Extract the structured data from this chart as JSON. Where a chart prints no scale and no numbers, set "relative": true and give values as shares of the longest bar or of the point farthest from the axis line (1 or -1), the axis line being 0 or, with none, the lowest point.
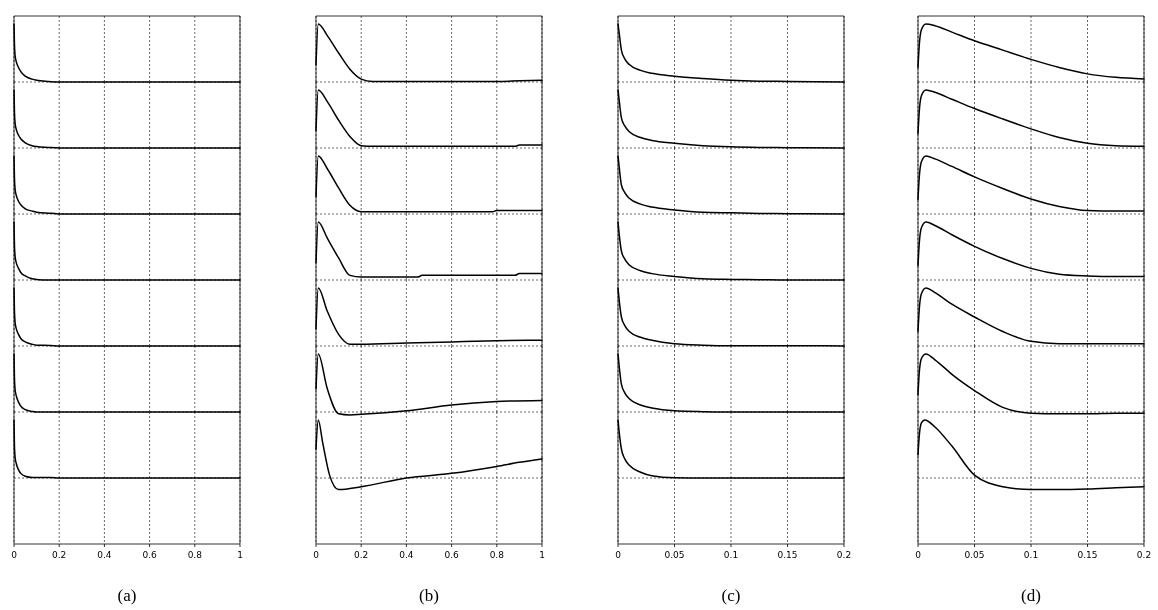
{
  "chart_data": [
    {
      "type": "line",
      "relative": true,
      "color": "#000000",
      "grid": "x",
      "tick_labels": false,
      "xlim": [
        0,
        1
      ],
      "xticks": [
        0,
        0.2,
        0.4,
        0.6,
        0.8,
        1
      ],
      "x": [
        0,
        0.002,
        0.005,
        0.01,
        0.02,
        0.03,
        0.05,
        0.08,
        0.1,
        0.15,
        0.2,
        0.4,
        0.6,
        0.8,
        1
      ],
      "values": [
        1,
        0.65,
        0.45,
        0.35,
        0.25,
        0.18,
        0.1,
        0.05,
        0.03,
        0.01,
        0,
        0,
        0,
        0,
        0
      ]
    },
    {
      "type": "line",
      "relative": true,
      "color": "#000000",
      "grid": "x",
      "tick_labels": false,
      "xlim": [
        0,
        1
      ],
      "xticks": [
        0,
        0.2,
        0.4,
        0.6,
        0.8,
        1
      ],
      "x": [
        0,
        0.002,
        0.005,
        0.01,
        0.02,
        0.03,
        0.05,
        0.08,
        0.1,
        0.15,
        0.2,
        0.4,
        0.6,
        0.8,
        1
      ],
      "values": [
        1,
        0.62,
        0.42,
        0.32,
        0.22,
        0.16,
        0.09,
        0.04,
        0.025,
        0.01,
        0,
        0,
        0,
        0,
        0
      ]
    },
    {
      "type": "line",
      "relative": true,
      "color": "#000000",
      "grid": "x",
      "tick_labels": false,
      "xlim": [
        0,
        1
      ],
      "xticks": [
        0,
        0.2,
        0.4,
        0.6,
        0.8,
        1
      ],
      "x": [
        0,
        0.002,
        0.005,
        0.01,
        0.02,
        0.03,
        0.05,
        0.08,
        0.1,
        0.15,
        0.18,
        0.2,
        0.4,
        0.6,
        0.8,
        1
      ],
      "values": [
        1,
        0.62,
        0.42,
        0.32,
        0.22,
        0.16,
        0.09,
        0.05,
        0.03,
        0.015,
        0.01,
        0,
        0,
        0,
        0,
        0
      ]
    },
    {
      "type": "line",
      "relative": true,
      "color": "#000000",
      "grid": "x",
      "tick_labels": false,
      "xlim": [
        0,
        1
      ],
      "xticks": [
        0,
        0.2,
        0.4,
        0.6,
        0.8,
        1
      ],
      "x": [
        0,
        0.002,
        0.005,
        0.01,
        0.02,
        0.03,
        0.05,
        0.08,
        0.1,
        0.15,
        0.2,
        0.4,
        0.6,
        0.8,
        1
      ],
      "values": [
        1,
        0.6,
        0.4,
        0.3,
        0.2,
        0.13,
        0.07,
        0.02,
        0.01,
        0,
        0,
        0,
        0,
        0,
        0
      ]
    },
    {
      "type": "line",
      "relative": true,
      "color": "#000000",
      "grid": "x",
      "tick_labels": false,
      "xlim": [
        0,
        1
      ],
      "xticks": [
        0,
        0.2,
        0.4,
        0.6,
        0.8,
        1
      ],
      "x": [
        0,
        0.002,
        0.005,
        0.01,
        0.02,
        0.03,
        0.05,
        0.08,
        0.1,
        0.16,
        0.2,
        0.4,
        0.6,
        0.8,
        1
      ],
      "values": [
        1,
        0.6,
        0.4,
        0.3,
        0.2,
        0.13,
        0.07,
        0.03,
        0.015,
        0.01,
        0,
        0,
        0,
        0,
        0
      ]
    },
    {
      "type": "line",
      "relative": true,
      "color": "#000000",
      "grid": "x",
      "tick_labels": false,
      "xlim": [
        0,
        1
      ],
      "xticks": [
        0,
        0.2,
        0.4,
        0.6,
        0.8,
        1
      ],
      "x": [
        0,
        0.002,
        0.005,
        0.01,
        0.02,
        0.03,
        0.05,
        0.08,
        0.1,
        0.15,
        0.2,
        0.4,
        0.6,
        0.8,
        1
      ],
      "values": [
        1,
        0.6,
        0.38,
        0.28,
        0.17,
        0.1,
        0.04,
        0.01,
        0,
        0,
        0,
        0,
        0,
        0,
        0
      ]
    },
    {
      "type": "line",
      "relative": true,
      "color": "#000000",
      "grid": "x",
      "tick_labels": "x",
      "xlabel": "(a)",
      "xlim": [
        0,
        1
      ],
      "xticks": [
        0,
        0.2,
        0.4,
        0.6,
        0.8,
        1
      ],
      "x": [
        0,
        0.002,
        0.005,
        0.01,
        0.02,
        0.03,
        0.05,
        0.08,
        0.1,
        0.16,
        0.2,
        0.4,
        0.6,
        0.8,
        1
      ],
      "values": [
        1,
        0.55,
        0.35,
        0.25,
        0.14,
        0.08,
        0.03,
        0.01,
        0.01,
        0.01,
        0,
        0,
        0,
        0,
        0
      ]
    },
    {
      "type": "line",
      "relative": true,
      "color": "#000000",
      "grid": "x",
      "tick_labels": false,
      "xlim": [
        0,
        1
      ],
      "xticks": [
        0,
        0.2,
        0.4,
        0.6,
        0.8,
        1
      ],
      "x": [
        0,
        0.01,
        0.05,
        0.1,
        0.15,
        0.2,
        0.25,
        0.4,
        0.6,
        0.8,
        0.9,
        1
      ],
      "values": [
        0.3,
        1,
        0.8,
        0.5,
        0.22,
        0.05,
        0.01,
        0.01,
        0.01,
        0.01,
        0.02,
        0.03
      ]
    },
    {
      "type": "line",
      "relative": true,
      "color": "#000000",
      "grid": "x",
      "tick_labels": false,
      "xlim": [
        0,
        1
      ],
      "xticks": [
        0,
        0.2,
        0.4,
        0.6,
        0.8,
        1
      ],
      "x": [
        0,
        0.01,
        0.05,
        0.1,
        0.15,
        0.2,
        0.25,
        0.4,
        0.6,
        0.8,
        0.88,
        0.9,
        1
      ],
      "values": [
        0.3,
        1,
        0.8,
        0.48,
        0.2,
        0.04,
        0.03,
        0.03,
        0.03,
        0.03,
        0.03,
        0.05,
        0.05
      ]
    },
    {
      "type": "line",
      "relative": true,
      "color": "#000000",
      "grid": "x",
      "tick_labels": false,
      "xlim": [
        0,
        1
      ],
      "xticks": [
        0,
        0.2,
        0.4,
        0.6,
        0.8,
        1
      ],
      "x": [
        0,
        0.01,
        0.05,
        0.1,
        0.15,
        0.2,
        0.4,
        0.6,
        0.78,
        0.8,
        1
      ],
      "values": [
        0.3,
        1,
        0.78,
        0.45,
        0.15,
        0.04,
        0.04,
        0.04,
        0.04,
        0.06,
        0.06
      ]
    },
    {
      "type": "line",
      "relative": true,
      "color": "#000000",
      "grid": "x",
      "tick_labels": false,
      "xlim": [
        0,
        1
      ],
      "xticks": [
        0,
        0.2,
        0.4,
        0.6,
        0.8,
        1
      ],
      "x": [
        0,
        0.01,
        0.05,
        0.1,
        0.15,
        0.2,
        0.45,
        0.47,
        0.6,
        0.8,
        0.88,
        0.9,
        1
      ],
      "values": [
        0.3,
        1,
        0.72,
        0.38,
        0.08,
        0.05,
        0.05,
        0.08,
        0.08,
        0.08,
        0.08,
        0.11,
        0.11
      ]
    },
    {
      "type": "line",
      "relative": true,
      "color": "#000000",
      "grid": "x",
      "tick_labels": false,
      "xlim": [
        0,
        1
      ],
      "xticks": [
        0,
        0.2,
        0.4,
        0.6,
        0.8,
        1
      ],
      "x": [
        0,
        0.01,
        0.05,
        0.1,
        0.15,
        0.2,
        0.4,
        0.6,
        0.8,
        1
      ],
      "values": [
        0.3,
        1,
        0.6,
        0.2,
        0.03,
        0.03,
        0.05,
        0.07,
        0.09,
        0.1
      ]
    },
    {
      "type": "line",
      "relative": true,
      "color": "#000000",
      "grid": "x",
      "tick_labels": false,
      "xlim": [
        0,
        1
      ],
      "xticks": [
        0,
        0.2,
        0.4,
        0.6,
        0.8,
        1
      ],
      "x": [
        0,
        0.01,
        0.05,
        0.1,
        0.15,
        0.2,
        0.4,
        0.6,
        0.8,
        1
      ],
      "values": [
        0.4,
        1,
        0.4,
        -0.03,
        -0.05,
        -0.04,
        0.02,
        0.12,
        0.18,
        0.2
      ]
    },
    {
      "type": "line",
      "relative": true,
      "color": "#000000",
      "grid": "x",
      "tick_labels": "x",
      "xlabel": "(b)",
      "xlim": [
        0,
        1
      ],
      "xticks": [
        0,
        0.2,
        0.4,
        0.6,
        0.8,
        1
      ],
      "x": [
        0,
        0.01,
        0.03,
        0.06,
        0.1,
        0.2,
        0.4,
        0.6,
        0.8,
        0.9,
        1
      ],
      "values": [
        0.5,
        1,
        0.6,
        0.05,
        -0.2,
        -0.15,
        0,
        0.08,
        0.2,
        0.27,
        0.33
      ]
    },
    {
      "type": "line",
      "relative": true,
      "color": "#000000",
      "grid": "x",
      "tick_labels": false,
      "xlim": [
        0,
        0.2
      ],
      "xticks": [
        0,
        0.05,
        0.1,
        0.15,
        0.2
      ],
      "x": [
        0,
        0.001,
        0.003,
        0.006,
        0.01,
        0.02,
        0.03,
        0.05,
        0.075,
        0.1,
        0.125,
        0.15,
        0.2
      ],
      "values": [
        1,
        0.85,
        0.55,
        0.4,
        0.3,
        0.2,
        0.15,
        0.1,
        0.06,
        0.03,
        0.015,
        0.01,
        0
      ]
    },
    {
      "type": "line",
      "relative": true,
      "color": "#000000",
      "grid": "x",
      "tick_labels": false,
      "xlim": [
        0,
        0.2
      ],
      "xticks": [
        0,
        0.05,
        0.1,
        0.15,
        0.2
      ],
      "x": [
        0,
        0.001,
        0.003,
        0.006,
        0.01,
        0.02,
        0.03,
        0.05,
        0.075,
        0.1,
        0.125,
        0.15,
        0.2
      ],
      "values": [
        1,
        0.83,
        0.52,
        0.38,
        0.28,
        0.18,
        0.13,
        0.08,
        0.04,
        0.02,
        0.01,
        0.005,
        0
      ]
    },
    {
      "type": "line",
      "relative": true,
      "color": "#000000",
      "grid": "x",
      "tick_labels": false,
      "xlim": [
        0,
        0.2
      ],
      "xticks": [
        0,
        0.05,
        0.1,
        0.15,
        0.2
      ],
      "x": [
        0,
        0.001,
        0.003,
        0.006,
        0.01,
        0.02,
        0.03,
        0.05,
        0.075,
        0.1,
        0.125,
        0.15,
        0.2
      ],
      "values": [
        1,
        0.82,
        0.5,
        0.37,
        0.27,
        0.17,
        0.12,
        0.07,
        0.03,
        0.02,
        0.01,
        0.005,
        0
      ]
    },
    {
      "type": "line",
      "relative": true,
      "color": "#000000",
      "grid": "x",
      "tick_labels": false,
      "xlim": [
        0,
        0.2
      ],
      "xticks": [
        0,
        0.05,
        0.1,
        0.15,
        0.2
      ],
      "x": [
        0,
        0.001,
        0.003,
        0.006,
        0.01,
        0.02,
        0.03,
        0.05,
        0.075,
        0.1,
        0.125,
        0.15,
        0.2
      ],
      "values": [
        1,
        0.8,
        0.5,
        0.36,
        0.26,
        0.16,
        0.11,
        0.06,
        0.02,
        0.01,
        0.005,
        0,
        0
      ]
    },
    {
      "type": "line",
      "relative": true,
      "color": "#000000",
      "grid": "x",
      "tick_labels": false,
      "xlim": [
        0,
        0.2
      ],
      "xticks": [
        0,
        0.05,
        0.1,
        0.15,
        0.2
      ],
      "x": [
        0,
        0.001,
        0.003,
        0.006,
        0.01,
        0.02,
        0.03,
        0.05,
        0.075,
        0.1,
        0.125,
        0.15,
        0.2
      ],
      "values": [
        1,
        0.8,
        0.5,
        0.35,
        0.25,
        0.15,
        0.1,
        0.04,
        0.015,
        0.005,
        0.005,
        0.005,
        0
      ]
    },
    {
      "type": "line",
      "relative": true,
      "color": "#000000",
      "grid": "x",
      "tick_labels": false,
      "xlim": [
        0,
        0.2
      ],
      "xticks": [
        0,
        0.05,
        0.1,
        0.15,
        0.2
      ],
      "x": [
        0,
        0.001,
        0.003,
        0.006,
        0.01,
        0.02,
        0.03,
        0.05,
        0.075,
        0.1,
        0.125,
        0.15,
        0.2
      ],
      "values": [
        1,
        0.8,
        0.48,
        0.33,
        0.23,
        0.12,
        0.07,
        0.02,
        0.005,
        0,
        0,
        0,
        0
      ]
    },
    {
      "type": "line",
      "relative": true,
      "color": "#000000",
      "grid": "x",
      "tick_labels": "x",
      "xlabel": "(c)",
      "xlim": [
        0,
        0.2
      ],
      "xticks": [
        0,
        0.05,
        0.1,
        0.15,
        0.2
      ],
      "x": [
        0,
        0.001,
        0.003,
        0.006,
        0.01,
        0.02,
        0.03,
        0.05,
        0.075,
        0.1,
        0.125,
        0.15,
        0.2
      ],
      "values": [
        1,
        0.8,
        0.5,
        0.33,
        0.22,
        0.1,
        0.04,
        0.005,
        0,
        0,
        0,
        0,
        0
      ]
    },
    {
      "type": "line",
      "relative": true,
      "color": "#000000",
      "grid": "x",
      "tick_labels": false,
      "xlim": [
        0,
        0.2
      ],
      "xticks": [
        0,
        0.05,
        0.1,
        0.15,
        0.2
      ],
      "x": [
        0,
        0.001,
        0.003,
        0.007,
        0.015,
        0.03,
        0.05,
        0.075,
        0.1,
        0.125,
        0.15,
        0.175,
        0.2
      ],
      "values": [
        0.25,
        0.6,
        0.9,
        1,
        0.97,
        0.86,
        0.71,
        0.55,
        0.39,
        0.25,
        0.14,
        0.08,
        0.05
      ]
    },
    {
      "type": "line",
      "relative": true,
      "color": "#000000",
      "grid": "x",
      "tick_labels": false,
      "xlim": [
        0,
        0.2
      ],
      "xticks": [
        0,
        0.05,
        0.1,
        0.15,
        0.2
      ],
      "x": [
        0,
        0.001,
        0.003,
        0.007,
        0.015,
        0.03,
        0.05,
        0.075,
        0.1,
        0.125,
        0.15,
        0.175,
        0.2
      ],
      "values": [
        0.25,
        0.6,
        0.9,
        1,
        0.96,
        0.84,
        0.68,
        0.5,
        0.33,
        0.18,
        0.08,
        0.04,
        0.03
      ]
    },
    {
      "type": "line",
      "relative": true,
      "color": "#000000",
      "grid": "x",
      "tick_labels": false,
      "xlim": [
        0,
        0.2
      ],
      "xticks": [
        0,
        0.05,
        0.1,
        0.15,
        0.2
      ],
      "x": [
        0,
        0.001,
        0.003,
        0.007,
        0.015,
        0.03,
        0.05,
        0.075,
        0.1,
        0.125,
        0.15,
        0.175,
        0.2
      ],
      "values": [
        0.25,
        0.6,
        0.9,
        1,
        0.95,
        0.82,
        0.64,
        0.44,
        0.26,
        0.13,
        0.06,
        0.05,
        0.05
      ]
    },
    {
      "type": "line",
      "relative": true,
      "color": "#000000",
      "grid": "x",
      "tick_labels": false,
      "xlim": [
        0,
        0.2
      ],
      "xticks": [
        0,
        0.05,
        0.1,
        0.15,
        0.2
      ],
      "x": [
        0,
        0.001,
        0.003,
        0.007,
        0.015,
        0.03,
        0.05,
        0.075,
        0.1,
        0.125,
        0.15,
        0.175,
        0.2
      ],
      "values": [
        0.25,
        0.6,
        0.9,
        1,
        0.94,
        0.78,
        0.58,
        0.37,
        0.2,
        0.1,
        0.07,
        0.06,
        0.06
      ]
    },
    {
      "type": "line",
      "relative": true,
      "color": "#000000",
      "grid": "x",
      "tick_labels": false,
      "xlim": [
        0,
        0.2
      ],
      "xticks": [
        0,
        0.05,
        0.1,
        0.15,
        0.2
      ],
      "x": [
        0,
        0.001,
        0.003,
        0.007,
        0.015,
        0.03,
        0.05,
        0.075,
        0.1,
        0.125,
        0.15,
        0.175,
        0.2
      ],
      "values": [
        0.25,
        0.6,
        0.9,
        1,
        0.92,
        0.72,
        0.5,
        0.25,
        0.08,
        0.04,
        0.04,
        0.04,
        0.04
      ]
    },
    {
      "type": "line",
      "relative": true,
      "color": "#000000",
      "grid": "x",
      "tick_labels": false,
      "xlim": [
        0,
        0.2
      ],
      "xticks": [
        0,
        0.05,
        0.1,
        0.15,
        0.2
      ],
      "x": [
        0,
        0.001,
        0.003,
        0.007,
        0.015,
        0.03,
        0.05,
        0.075,
        0.1,
        0.125,
        0.15,
        0.175,
        0.2
      ],
      "values": [
        0.3,
        0.65,
        0.92,
        1,
        0.9,
        0.65,
        0.37,
        0.08,
        -0.02,
        -0.03,
        -0.03,
        -0.02,
        -0.02
      ]
    },
    {
      "type": "line",
      "relative": true,
      "color": "#000000",
      "grid": "x",
      "tick_labels": "x",
      "xlabel": "(d)",
      "xlim": [
        0,
        0.2
      ],
      "xticks": [
        0,
        0.05,
        0.1,
        0.15,
        0.2
      ],
      "x": [
        0,
        0.001,
        0.003,
        0.006,
        0.015,
        0.03,
        0.05,
        0.075,
        0.1,
        0.125,
        0.15,
        0.175,
        0.2
      ],
      "values": [
        0.4,
        0.7,
        0.95,
        1,
        0.88,
        0.55,
        0.05,
        -0.15,
        -0.2,
        -0.2,
        -0.19,
        -0.17,
        -0.15
      ]
    }
  ]
}
